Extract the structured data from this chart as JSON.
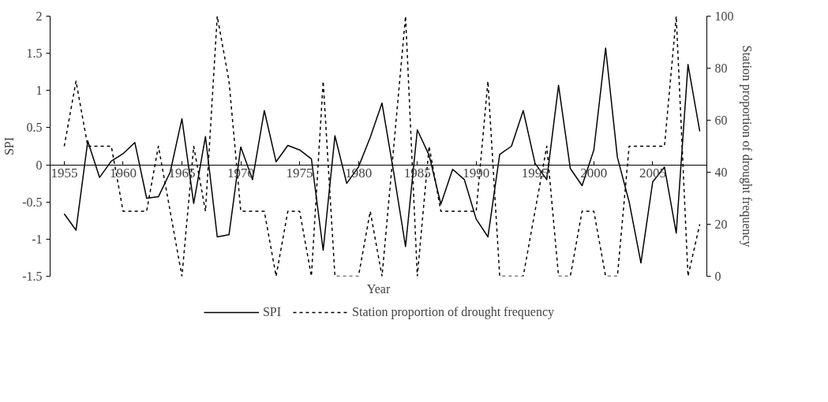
{
  "chart_data": {
    "type": "line",
    "xlabel": "Year",
    "ylabel": "SPI",
    "y2label": "Station proportion of drought frequency",
    "x": [
      1955,
      1956,
      1957,
      1958,
      1959,
      1960,
      1961,
      1962,
      1963,
      1964,
      1965,
      1966,
      1967,
      1968,
      1969,
      1970,
      1971,
      1972,
      1973,
      1974,
      1975,
      1976,
      1977,
      1978,
      1979,
      1980,
      1981,
      1982,
      1983,
      1984,
      1985,
      1986,
      1987,
      1988,
      1989,
      1990,
      1991,
      1992,
      1993,
      1994,
      1995,
      1996,
      1997,
      1998,
      1999,
      2000,
      2001,
      2002,
      2003,
      2004,
      2005,
      2006,
      2007,
      2008,
      2009
    ],
    "series": [
      {
        "name": "SPI",
        "color": "#000000",
        "line_style": "solid",
        "values": [
          -0.66,
          -0.88,
          0.32,
          -0.17,
          0.05,
          0.15,
          0.3,
          -0.45,
          -0.43,
          -0.1,
          0.62,
          -0.52,
          0.38,
          -0.97,
          -0.94,
          0.24,
          -0.2,
          0.73,
          0.04,
          0.26,
          0.2,
          0.08,
          -1.15,
          0.39,
          -0.25,
          -0.03,
          0.37,
          0.83,
          -0.11,
          -1.1,
          0.47,
          0.13,
          -0.53,
          -0.06,
          -0.2,
          -0.73,
          -0.97,
          0.14,
          0.25,
          0.73,
          0.02,
          -0.2,
          1.07,
          -0.05,
          -0.28,
          0.2,
          1.57,
          0.1,
          -0.5,
          -1.32,
          -0.23,
          -0.03,
          -0.92,
          1.35,
          0.45
        ]
      },
      {
        "name": "Station proportion of drought frequency",
        "color": "#000000",
        "line_style": "dotted",
        "axis": "y2",
        "values": [
          50,
          75,
          50,
          50,
          50,
          25,
          25,
          25,
          50,
          25,
          0,
          50,
          25,
          100,
          75,
          25,
          25,
          25,
          0,
          25,
          25,
          0,
          75,
          0,
          0,
          0,
          25,
          0,
          50,
          100,
          0,
          50,
          25,
          25,
          25,
          25,
          75,
          0,
          0,
          0,
          25,
          50,
          0,
          0,
          25,
          25,
          0,
          0,
          50,
          50,
          50,
          50,
          100,
          0,
          20
        ]
      }
    ],
    "xlim": [
      1953.8,
      2009.6
    ],
    "xticks": [
      1955,
      1960,
      1965,
      1970,
      1975,
      1980,
      1985,
      1990,
      1995,
      2000,
      2005
    ],
    "ylim": [
      -1.5,
      2
    ],
    "yticks": [
      -1.5,
      -1,
      -0.5,
      0,
      0.5,
      1,
      1.5,
      2
    ],
    "y2lim": [
      0,
      100
    ],
    "y2ticks": [
      0,
      20,
      40,
      60,
      80,
      100
    ],
    "grid": false,
    "legend": "bottom",
    "marker": "none"
  }
}
